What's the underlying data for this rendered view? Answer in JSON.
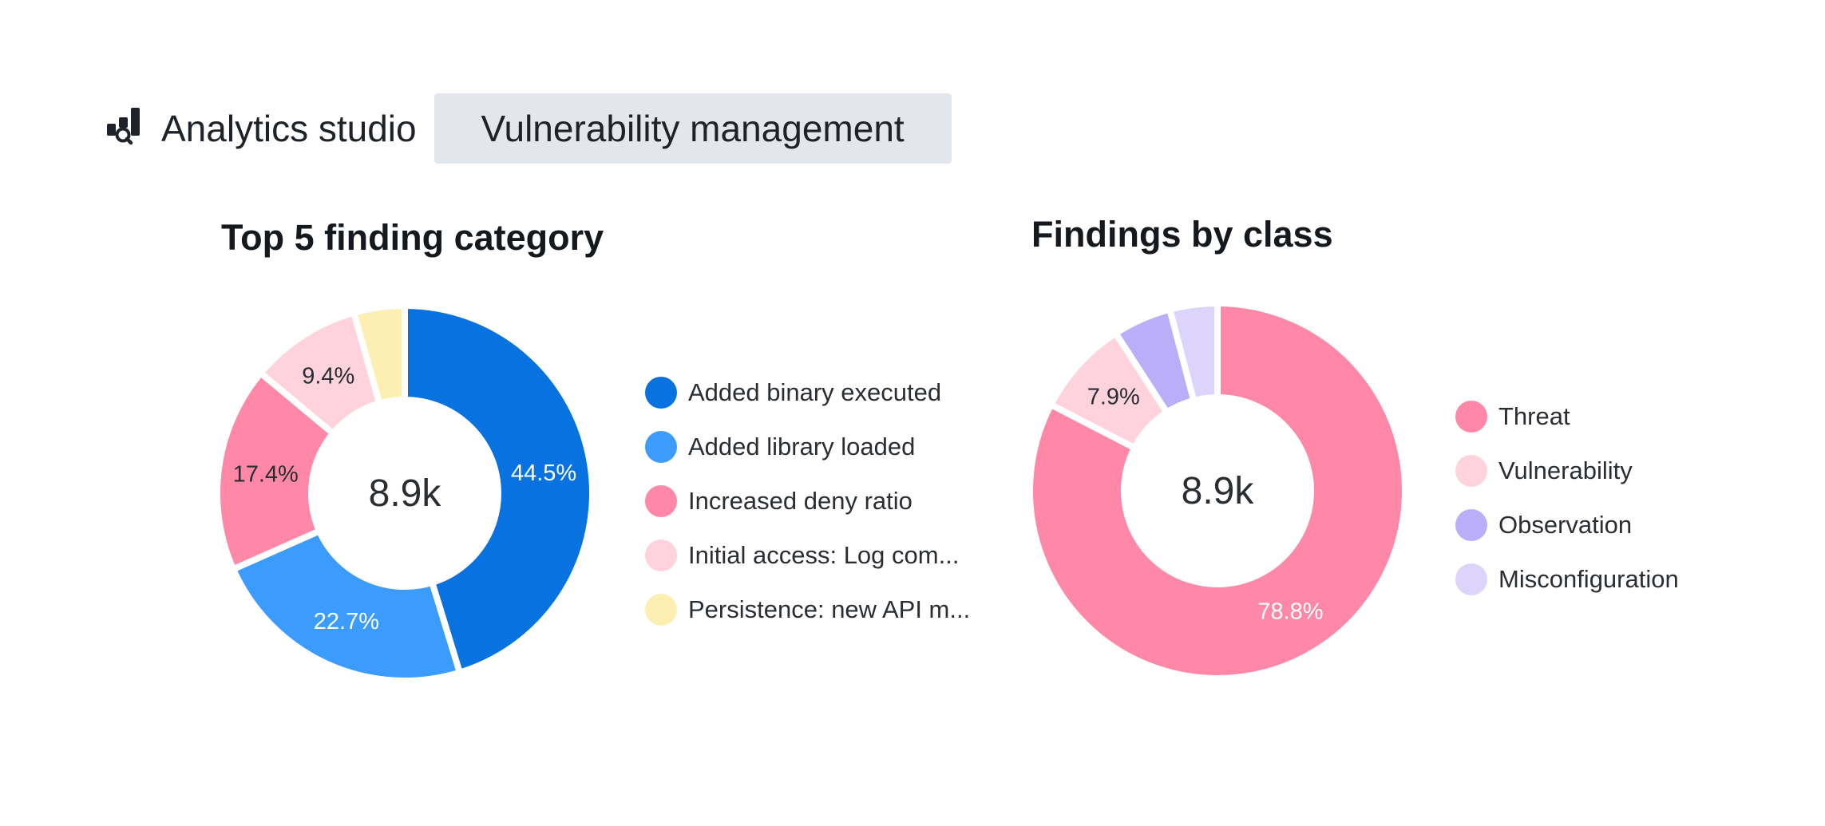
{
  "header": {
    "app_icon": "analytics-studio-icon",
    "app_title": "Analytics studio",
    "active_tab": "Vulnerability management"
  },
  "panels": [
    {
      "title": "Top 5 finding category",
      "center_label": "8.9k",
      "legend": [
        {
          "label": "Added binary executed",
          "color": "#0872e1"
        },
        {
          "label": "Added library loaded",
          "color": "#3b9cfd"
        },
        {
          "label": "Increased deny ratio",
          "color": "#ff88a8"
        },
        {
          "label": "Initial access: Log com...",
          "color": "#fed3dd"
        },
        {
          "label": "Persistence: new API m...",
          "color": "#fdefb2"
        }
      ]
    },
    {
      "title": "Findings by class",
      "center_label": "8.9k",
      "legend": [
        {
          "label": "Threat",
          "color": "#ff88a8"
        },
        {
          "label": "Vulnerability",
          "color": "#fed3dd"
        },
        {
          "label": "Observation",
          "color": "#b9aef7"
        },
        {
          "label": "Misconfiguration",
          "color": "#dcd4fb"
        }
      ]
    }
  ],
  "chart_data": [
    {
      "type": "pie",
      "title": "Top 5 finding category",
      "total_label": "8.9k",
      "labels": [
        "Added binary executed",
        "Added library loaded",
        "Increased deny ratio",
        "Initial access: Log com...",
        "Persistence: new API m..."
      ],
      "values": [
        44.5,
        22.7,
        17.4,
        9.4,
        4.3
      ],
      "value_labels": [
        "44.5%",
        "22.7%",
        "17.4%",
        "9.4%",
        ""
      ],
      "colors": [
        "#0872e1",
        "#3b9cfd",
        "#ff88a8",
        "#fed3dd",
        "#fdefb2"
      ],
      "label_colors": [
        "#ffffff",
        "#ffffff",
        "#2a2e33",
        "#2a2e33",
        "#2a2e33"
      ],
      "legend_position": "right"
    },
    {
      "type": "pie",
      "title": "Findings by class",
      "total_label": "8.9k",
      "labels": [
        "Threat",
        "Vulnerability",
        "Observation",
        "Misconfiguration"
      ],
      "values": [
        78.8,
        7.9,
        4.8,
        3.9
      ],
      "value_labels": [
        "78.8%",
        "7.9%",
        "",
        ""
      ],
      "colors": [
        "#ff88a8",
        "#fed3dd",
        "#b9aef7",
        "#dcd4fb"
      ],
      "label_colors": [
        "#ffffff",
        "#2a2e33",
        "#2a2e33",
        "#2a2e33"
      ],
      "legend_position": "right"
    }
  ]
}
